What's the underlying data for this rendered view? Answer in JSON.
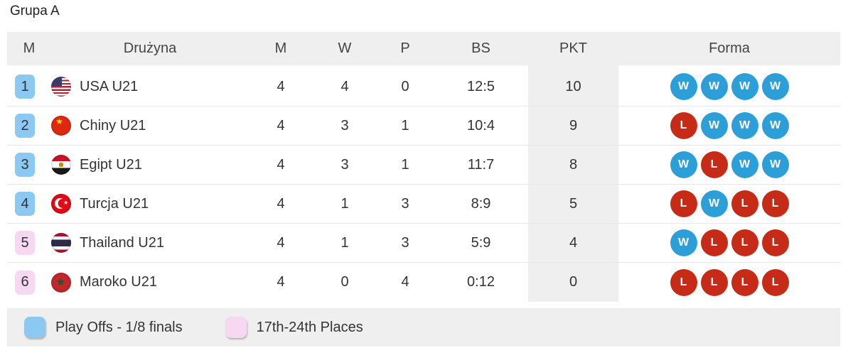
{
  "title": "Grupa A",
  "table": {
    "columns": [
      "M",
      "Drużyna",
      "M",
      "W",
      "P",
      "BS",
      "PKT",
      "Forma"
    ],
    "rows": [
      {
        "pos": "1",
        "zone": "playoff",
        "flag": "usa",
        "team": "USA U21",
        "m": "4",
        "w": "4",
        "p": "0",
        "bs": "12:5",
        "pkt": "10",
        "form": [
          "W",
          "W",
          "W",
          "W"
        ]
      },
      {
        "pos": "2",
        "zone": "playoff",
        "flag": "china",
        "team": "Chiny U21",
        "m": "4",
        "w": "3",
        "p": "1",
        "bs": "10:4",
        "pkt": "9",
        "form": [
          "L",
          "W",
          "W",
          "W"
        ]
      },
      {
        "pos": "3",
        "zone": "playoff",
        "flag": "egypt",
        "team": "Egipt U21",
        "m": "4",
        "w": "3",
        "p": "1",
        "bs": "11:7",
        "pkt": "8",
        "form": [
          "W",
          "L",
          "W",
          "W"
        ]
      },
      {
        "pos": "4",
        "zone": "playoff",
        "flag": "turkey",
        "team": "Turcja U21",
        "m": "4",
        "w": "1",
        "p": "3",
        "bs": "8:9",
        "pkt": "5",
        "form": [
          "L",
          "W",
          "L",
          "L"
        ]
      },
      {
        "pos": "5",
        "zone": "places",
        "flag": "thailand",
        "team": "Thailand U21",
        "m": "4",
        "w": "1",
        "p": "3",
        "bs": "5:9",
        "pkt": "4",
        "form": [
          "W",
          "L",
          "L",
          "L"
        ]
      },
      {
        "pos": "6",
        "zone": "places",
        "flag": "morocco",
        "team": "Maroko U21",
        "m": "4",
        "w": "0",
        "p": "4",
        "bs": "0:12",
        "pkt": "0",
        "form": [
          "L",
          "L",
          "L",
          "L"
        ]
      }
    ]
  },
  "legend": {
    "items": [
      {
        "label": "Play Offs - 1/8 finals",
        "zone": "playoff"
      },
      {
        "label": "17th-24th Places",
        "zone": "places"
      }
    ]
  },
  "colors": {
    "win": "#2d9fd8",
    "loss": "#c52b16",
    "zone_playoff": "#8bc8f2",
    "zone_places": "#f6d8f3",
    "header_bg": "#efefef"
  }
}
